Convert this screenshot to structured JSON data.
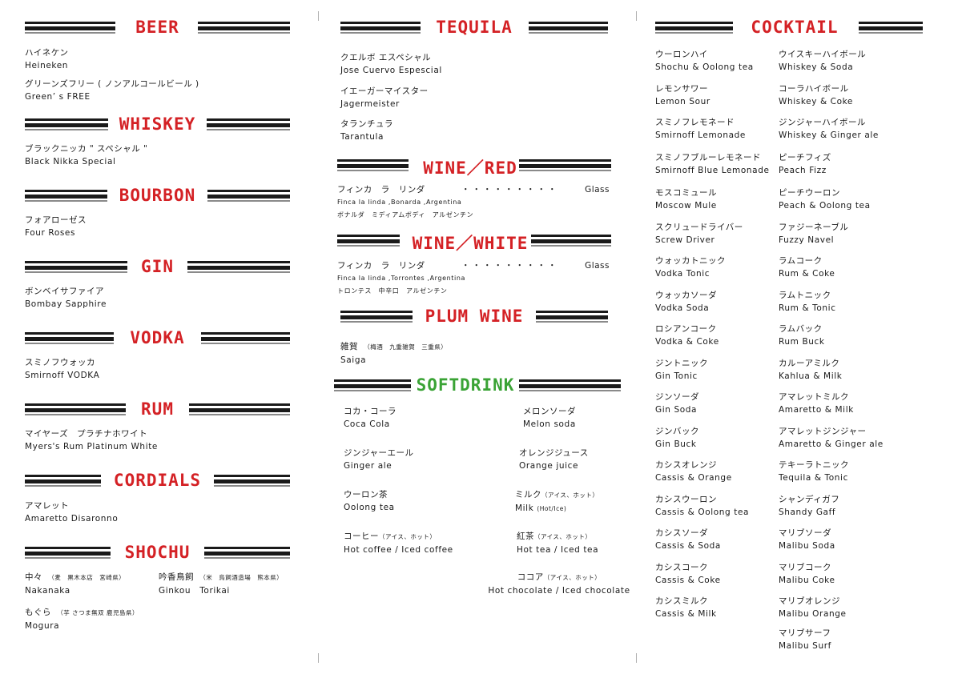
{
  "colors": {
    "heading_red": "#d42125",
    "heading_green": "#3aa335",
    "text": "#1a1a1a",
    "bars": "#1a1a1a"
  },
  "left": {
    "beer": {
      "title": "BEER",
      "items": [
        {
          "jp": "ハイネケン",
          "en": "Heineken"
        },
        {
          "jp": "グリーンズフリー ( ノンアルコールビール )",
          "en": "Green’ s FREE"
        }
      ]
    },
    "whiskey": {
      "title": "WHISKEY",
      "items": [
        {
          "jp": "ブラックニッカ \" スペシャル \"",
          "en": "Black Nikka Special"
        }
      ]
    },
    "bourbon": {
      "title": "BOURBON",
      "items": [
        {
          "jp": "フォアローゼス",
          "en": "Four Roses"
        }
      ]
    },
    "gin": {
      "title": "GIN",
      "items": [
        {
          "jp": "ボンベイサファイア",
          "en": "Bombay Sapphire"
        }
      ]
    },
    "vodka": {
      "title": "VODKA",
      "items": [
        {
          "jp": "スミノフウォッカ",
          "en": "Smirnoff VODKA"
        }
      ]
    },
    "rum": {
      "title": "RUM",
      "items": [
        {
          "jp": "マイヤーズ　プラチナホワイト",
          "en": "Myers's Rum Platinum White"
        }
      ]
    },
    "cordials": {
      "title": "CORDIALS",
      "items": [
        {
          "jp": "アマレット",
          "en": "Amaretto Disaronno"
        }
      ]
    },
    "shochu": {
      "title": "SHOCHU",
      "items": [
        {
          "jp": "中々",
          "note": "（麦　黒木本店　宮崎県）",
          "en": "Nakanaka"
        },
        {
          "jp": "吟香鳥飼",
          "note": "（米　鳥飼酒造場　熊本県）",
          "en": "Ginkou　Torikai"
        },
        {
          "jp": "もぐら",
          "note": "（芋 さつま無双 鹿児島県）",
          "en": "Mogura"
        }
      ]
    }
  },
  "middle": {
    "tequila": {
      "title": "TEQUILA",
      "items": [
        {
          "jp": "クエルボ エスペシャル",
          "en": "Jose Cuervo Espescial"
        },
        {
          "jp": "イエーガーマイスター",
          "en": "Jagermeister"
        },
        {
          "jp": "タランチュラ",
          "en": "Tarantula"
        }
      ]
    },
    "wine_red": {
      "title": "WINE／RED",
      "jp": "フィンカ　ラ　リンダ",
      "dots": "・・・・・・・・・",
      "unit": "Glass",
      "en": "Finca la linda ,Bonarda ,Argentina",
      "desc": "ボナルダ　ミディアムボディ　アルゼンチン"
    },
    "wine_white": {
      "title": "WINE／WHITE",
      "jp": "フィンカ　ラ　リンダ",
      "dots": "・・・・・・・・・",
      "unit": "Glass",
      "en": "Finca la linda ,Torrontes ,Argentina",
      "desc": "トロンテス　中辛口　アルゼンチン"
    },
    "plum_wine": {
      "title": "PLUM WINE",
      "jp": "雑賀",
      "note": "（梅酒　九重雑賀　三重県）",
      "en": "Saiga"
    },
    "softdrink": {
      "title": "SOFTDRINK",
      "items": [
        {
          "jp": "コカ・コーラ",
          "en": "Coca Cola"
        },
        {
          "jp": "メロンソーダ",
          "en": "Melon soda"
        },
        {
          "jp": "ジンジャーエール",
          "en": "Ginger ale"
        },
        {
          "jp": "オレンジジュース",
          "en": "Orange juice"
        },
        {
          "jp": "ウーロン茶",
          "en": "Oolong tea"
        },
        {
          "jp": "ミルク",
          "note": "（アイス、ホット）",
          "en": "Milk",
          "en_note": "(Hot/Ice)"
        },
        {
          "jp": "コーヒー",
          "note": "（アイス、ホット）",
          "en": "Hot coffee / Iced coffee"
        },
        {
          "jp": "紅茶",
          "note": "（アイス、ホット）",
          "en": "Hot tea / Iced tea"
        },
        {
          "jp": "ココア",
          "note": "（アイス、ホット）",
          "en": "Hot chocolate / Iced chocolate"
        }
      ]
    }
  },
  "right": {
    "cocktail": {
      "title": "COCKTAIL",
      "col1": [
        {
          "jp": "ウーロンハイ",
          "en": "Shochu & Oolong tea"
        },
        {
          "jp": "レモンサワー",
          "en": "Lemon Sour"
        },
        {
          "jp": "スミノフレモネード",
          "en": "Smirnoff Lemonade"
        },
        {
          "jp": "スミノフブルーレモネード",
          "en": "Smirnoff Blue Lemonade"
        },
        {
          "jp": "モスコミュール",
          "en": "Moscow Mule"
        },
        {
          "jp": "スクリュードライバー",
          "en": "Screw Driver"
        },
        {
          "jp": "ウォッカトニック",
          "en": "Vodka Tonic"
        },
        {
          "jp": "ウォッカソーダ",
          "en": "Vodka Soda"
        },
        {
          "jp": "ロシアンコーク",
          "en": "Vodka & Coke"
        },
        {
          "jp": "ジントニック",
          "en": "Gin Tonic"
        },
        {
          "jp": "ジンソーダ",
          "en": "Gin Soda"
        },
        {
          "jp": "ジンバック",
          "en": "Gin Buck"
        },
        {
          "jp": "カシスオレンジ",
          "en": "Cassis & Orange"
        },
        {
          "jp": "カシスウーロン",
          "en": "Cassis & Oolong tea"
        },
        {
          "jp": "カシスソーダ",
          "en": "Cassis & Soda"
        },
        {
          "jp": "カシスコーク",
          "en": "Cassis & Coke"
        },
        {
          "jp": "カシスミルク",
          "en": "Cassis & Milk"
        }
      ],
      "col2": [
        {
          "jp": "ウイスキーハイボール",
          "en": "Whiskey & Soda"
        },
        {
          "jp": "コーラハイボール",
          "en": "Whiskey & Coke"
        },
        {
          "jp": "ジンジャーハイボール",
          "en": "Whiskey & Ginger ale"
        },
        {
          "jp": "ピーチフィズ",
          "en": "Peach Fizz"
        },
        {
          "jp": "ピーチウーロン",
          "en": "Peach & Oolong tea"
        },
        {
          "jp": "ファジーネーブル",
          "en": "Fuzzy Navel"
        },
        {
          "jp": "ラムコーク",
          "en": "Rum & Coke"
        },
        {
          "jp": "ラムトニック",
          "en": "Rum & Tonic"
        },
        {
          "jp": "ラムバック",
          "en": "Rum Buck"
        },
        {
          "jp": "カルーアミルク",
          "en": "Kahlua & Milk"
        },
        {
          "jp": "アマレットミルク",
          "en": "Amaretto & Milk"
        },
        {
          "jp": "アマレットジンジャー",
          "en": "Amaretto & Ginger ale"
        },
        {
          "jp": "テキーラトニック",
          "en": "Tequila & Tonic"
        },
        {
          "jp": "シャンディガフ",
          "en": "Shandy Gaff"
        },
        {
          "jp": "マリブソーダ",
          "en": "Malibu Soda"
        },
        {
          "jp": "マリブコーク",
          "en": "Malibu Coke"
        },
        {
          "jp": "マリブオレンジ",
          "en": "Malibu Orange"
        },
        {
          "jp": "マリブサーフ",
          "en": "Malibu Surf"
        }
      ]
    }
  }
}
